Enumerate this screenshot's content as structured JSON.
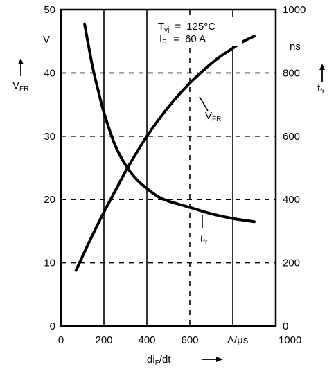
{
  "chart_data": {
    "type": "line",
    "title": "",
    "annotation": {
      "line1": {
        "symbol": "T",
        "sub": "vj",
        "eq": "=",
        "value": "125°C"
      },
      "line2": {
        "symbol": "I",
        "sub": "F",
        "eq": "=",
        "value": "60 A"
      }
    },
    "xlabel": {
      "main": "di",
      "sub": "F",
      "rest": "/dt"
    },
    "xunit": "A/μs",
    "xlim": [
      0,
      1000
    ],
    "x_ticks": [
      "0",
      "200",
      "400",
      "600",
      "1000"
    ],
    "left_axis": {
      "label": "V",
      "sub": "FR",
      "unit": "V",
      "ylim": [
        0,
        50
      ],
      "ticks": [
        "0",
        "10",
        "20",
        "30",
        "40",
        "50"
      ]
    },
    "right_axis": {
      "label": "t",
      "sub": "fr",
      "unit": "ns",
      "ylim": [
        0,
        1000
      ],
      "ticks": [
        "0",
        "200",
        "400",
        "600",
        "800",
        "1000"
      ]
    },
    "series": [
      {
        "name": "V",
        "name_sub": "FR",
        "axis": "left",
        "x": [
          70,
          100,
          150,
          200,
          250,
          300,
          350,
          400,
          450,
          500,
          550,
          600,
          650,
          700,
          750,
          800,
          850,
          900
        ],
        "values": [
          8.8,
          11,
          14.6,
          18,
          21.2,
          24.4,
          27.3,
          30,
          32.4,
          34.6,
          36.6,
          38.4,
          40,
          41.5,
          42.8,
          43.9,
          45,
          45.8
        ]
      },
      {
        "name": "t",
        "name_sub": "fr",
        "axis": "right",
        "x": [
          110,
          130,
          150,
          175,
          200,
          250,
          300,
          350,
          400,
          450,
          500,
          550,
          600,
          700,
          800,
          900
        ],
        "values": [
          955,
          880,
          810,
          740,
          675,
          575,
          510,
          465,
          435,
          410,
          395,
          385,
          375,
          355,
          340,
          330
        ]
      }
    ]
  }
}
